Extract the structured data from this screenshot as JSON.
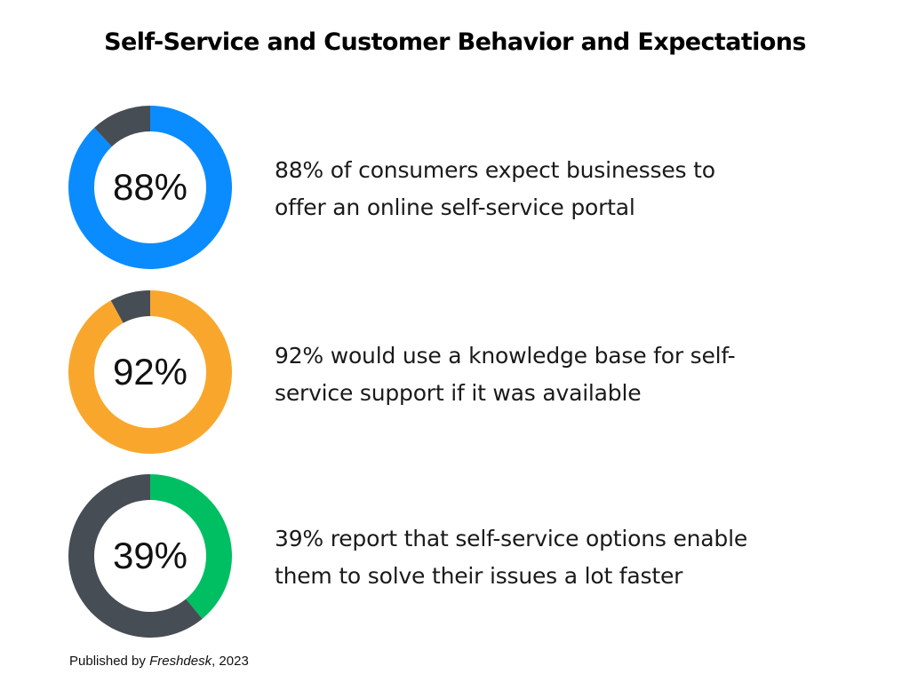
{
  "title": "Self-Service and Customer Behavior and Expectations",
  "colors": {
    "remainder": "#474d55",
    "blue": "#0a8cff",
    "orange": "#f9a72c",
    "green": "#00bf63"
  },
  "chart_data": [
    {
      "type": "pie",
      "variant": "donut",
      "value_label": "88%",
      "slices": [
        {
          "value": 88,
          "color": "#0a8cff"
        },
        {
          "value": 12,
          "color": "#474d55"
        }
      ],
      "text_lines": [
        "88% of consumers expect businesses to",
        "offer an online self-service portal"
      ]
    },
    {
      "type": "pie",
      "variant": "donut",
      "value_label": "92%",
      "slices": [
        {
          "value": 92,
          "color": "#f9a72c"
        },
        {
          "value": 8,
          "color": "#474d55"
        }
      ],
      "text_lines": [
        "92% would use a knowledge base for self-",
        "service support if it was available"
      ]
    },
    {
      "type": "pie",
      "variant": "donut",
      "value_label": "39%",
      "slices": [
        {
          "value": 39,
          "color": "#00bf63"
        },
        {
          "value": 61,
          "color": "#474d55"
        }
      ],
      "text_lines": [
        "39% report that self-service options enable",
        "them to solve their issues a lot faster"
      ]
    }
  ],
  "footer": {
    "prefix": "Published by ",
    "source": "Freshdesk",
    "suffix": ", 2023"
  }
}
